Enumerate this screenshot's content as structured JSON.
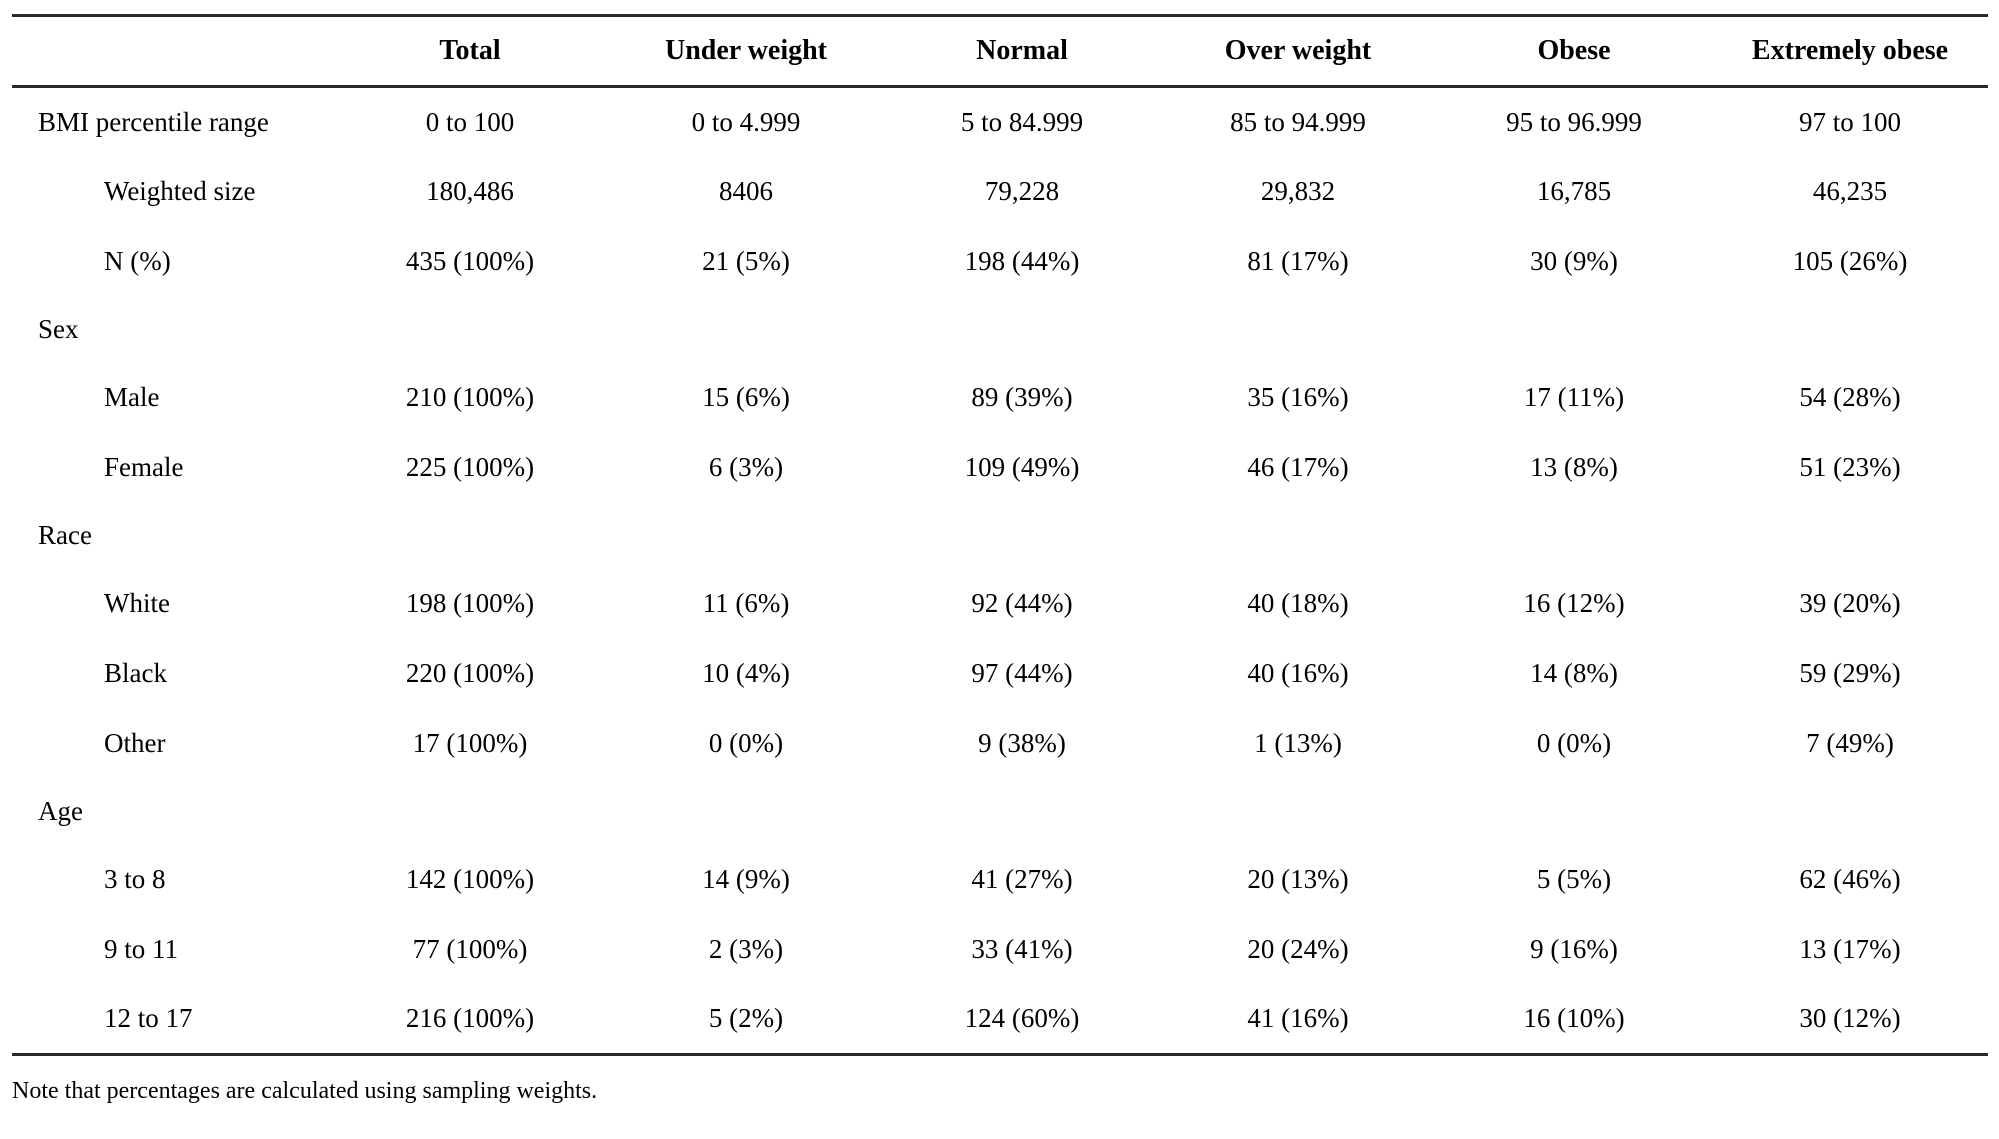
{
  "colors": {
    "background": "#ffffff",
    "text": "#000000",
    "rule_lines": "#2a2a2a"
  },
  "table": {
    "columns": [
      "",
      "Total",
      "Under weight",
      "Normal",
      "Over weight",
      "Obese",
      "Extremely obese"
    ],
    "rows": [
      {
        "label": "BMI percentile range",
        "indent": 0,
        "values": [
          "0 to 100",
          "0 to 4.999",
          "5 to 84.999",
          "85 to 94.999",
          "95 to 96.999",
          "97 to 100"
        ]
      },
      {
        "label": "Weighted size",
        "indent": 1,
        "values": [
          "180,486",
          "8406",
          "79,228",
          "29,832",
          "16,785",
          "46,235"
        ]
      },
      {
        "label": "N (%)",
        "indent": 1,
        "values": [
          "435 (100%)",
          "21 (5%)",
          "198 (44%)",
          "81 (17%)",
          "30 (9%)",
          "105 (26%)"
        ]
      },
      {
        "label": "Sex",
        "indent": 0,
        "values": [
          "",
          "",
          "",
          "",
          "",
          ""
        ]
      },
      {
        "label": "Male",
        "indent": 1,
        "values": [
          "210 (100%)",
          "15 (6%)",
          "89 (39%)",
          "35 (16%)",
          "17 (11%)",
          "54 (28%)"
        ]
      },
      {
        "label": "Female",
        "indent": 1,
        "values": [
          "225 (100%)",
          "6 (3%)",
          "109 (49%)",
          "46 (17%)",
          "13 (8%)",
          "51 (23%)"
        ]
      },
      {
        "label": "Race",
        "indent": 0,
        "values": [
          "",
          "",
          "",
          "",
          "",
          ""
        ]
      },
      {
        "label": "White",
        "indent": 1,
        "values": [
          "198 (100%)",
          "11 (6%)",
          "92 (44%)",
          "40 (18%)",
          "16 (12%)",
          "39 (20%)"
        ]
      },
      {
        "label": "Black",
        "indent": 1,
        "values": [
          "220 (100%)",
          "10 (4%)",
          "97 (44%)",
          "40 (16%)",
          "14 (8%)",
          "59 (29%)"
        ]
      },
      {
        "label": "Other",
        "indent": 1,
        "values": [
          "17 (100%)",
          "0 (0%)",
          "9 (38%)",
          "1 (13%)",
          "0 (0%)",
          "7 (49%)"
        ]
      },
      {
        "label": "Age",
        "indent": 0,
        "values": [
          "",
          "",
          "",
          "",
          "",
          ""
        ]
      },
      {
        "label": "3 to 8",
        "indent": 1,
        "values": [
          "142 (100%)",
          "14 (9%)",
          "41 (27%)",
          "20 (13%)",
          "5 (5%)",
          "62 (46%)"
        ]
      },
      {
        "label": "9 to 11",
        "indent": 1,
        "values": [
          "77 (100%)",
          "2 (3%)",
          "33 (41%)",
          "20 (24%)",
          "9 (16%)",
          "13 (17%)"
        ]
      },
      {
        "label": "12 to 17",
        "indent": 1,
        "values": [
          "216 (100%)",
          "5 (2%)",
          "124 (60%)",
          "41 (16%)",
          "16 (10%)",
          "30 (12%)"
        ]
      }
    ],
    "note": "Note that percentages are calculated using sampling weights."
  }
}
